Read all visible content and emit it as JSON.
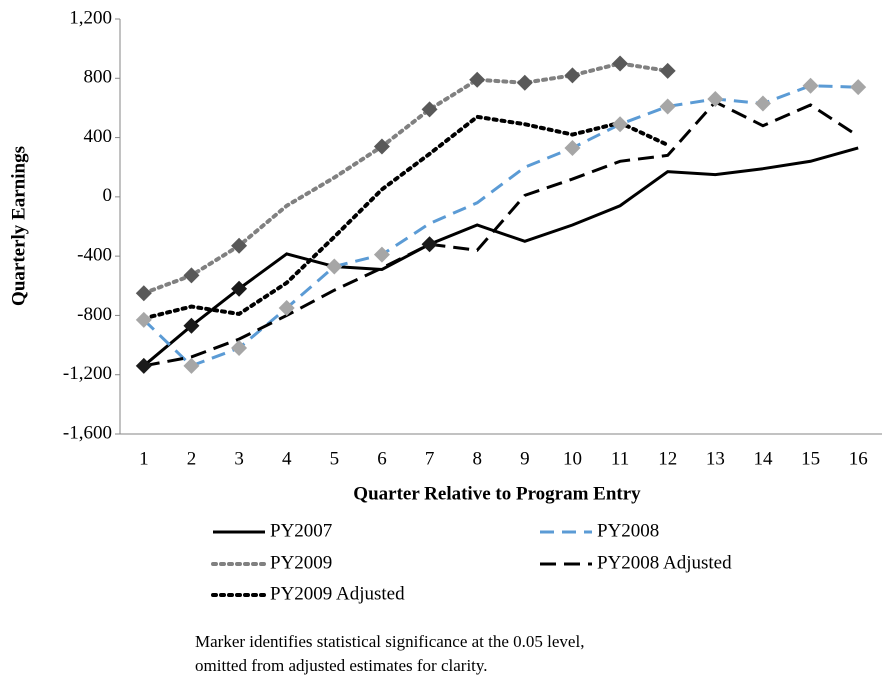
{
  "chart_data": {
    "type": "line",
    "y_label": "Quarterly Earnings",
    "x_label": "Quarter Relative to Program Entry",
    "categories": [
      "1",
      "2",
      "3",
      "4",
      "5",
      "6",
      "7",
      "8",
      "9",
      "10",
      "11",
      "12",
      "13",
      "14",
      "15",
      "16"
    ],
    "ylim": [
      -1600,
      1200
    ],
    "yticks": [
      {
        "value": -1600,
        "label": "-1,600"
      },
      {
        "value": -1200,
        "label": "-1,200"
      },
      {
        "value": -800,
        "label": "-800"
      },
      {
        "value": -400,
        "label": "-400"
      },
      0,
      400,
      800,
      {
        "value": 1200,
        "label": "1,200"
      }
    ],
    "series": [
      {
        "name": "PY2007",
        "color": "#000000",
        "dash": "solid",
        "marker_color": "#1a1a1a",
        "values": [
          -1140,
          -870,
          -620,
          -385,
          -470,
          -490,
          -320,
          -190,
          -300,
          -190,
          -60,
          170,
          150,
          190,
          240,
          330
        ],
        "markers": [
          true,
          true,
          true,
          false,
          false,
          false,
          true,
          false,
          false,
          false,
          false,
          false,
          false,
          false,
          false,
          false
        ]
      },
      {
        "name": "PY2008",
        "color": "#5b9bd5",
        "dash": "dashed",
        "marker_color": "#a6a6a6",
        "values": [
          -830,
          -1140,
          -1020,
          -750,
          -470,
          -390,
          -180,
          -40,
          200,
          330,
          490,
          610,
          660,
          630,
          750,
          740
        ],
        "markers": [
          true,
          true,
          true,
          true,
          true,
          true,
          false,
          false,
          false,
          true,
          true,
          true,
          true,
          true,
          true,
          true
        ]
      },
      {
        "name": "PY2009",
        "color": "#808080",
        "dash": "dotted",
        "marker_color": "#595959",
        "values": [
          -650,
          -530,
          -330,
          -60,
          130,
          340,
          590,
          790,
          770,
          820,
          900,
          850,
          null,
          null,
          null,
          null
        ],
        "markers": [
          true,
          true,
          true,
          false,
          false,
          true,
          true,
          true,
          true,
          true,
          true,
          true,
          false,
          false,
          false,
          false
        ]
      },
      {
        "name": "PY2008 Adjusted",
        "color": "#000000",
        "dash": "dashed",
        "values": [
          -1140,
          -1080,
          -960,
          -800,
          -630,
          -480,
          -320,
          -360,
          10,
          120,
          240,
          280,
          640,
          480,
          620,
          410
        ]
      },
      {
        "name": "PY2009 Adjusted",
        "color": "#000000",
        "dash": "dotted",
        "values": [
          -820,
          -740,
          -790,
          -580,
          -270,
          50,
          290,
          540,
          490,
          420,
          500,
          350,
          null,
          null,
          null,
          null
        ]
      }
    ],
    "notes": [
      "Marker identifies statistical significance at the 0.05 level,",
      "omitted from adjusted estimates for clarity."
    ]
  }
}
